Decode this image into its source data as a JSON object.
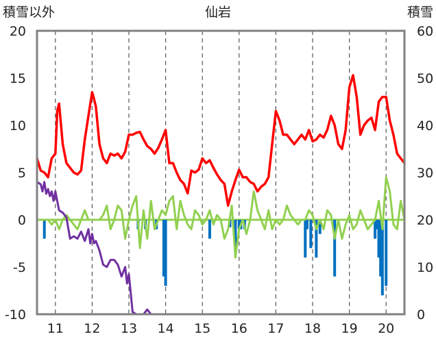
{
  "chart_data": {
    "type": "line",
    "title": "仙岩",
    "ylabel_left": "積雪以外",
    "ylabel_right": "積雪",
    "ylim_left": [
      -10,
      20
    ],
    "ylim_right": [
      0,
      60
    ],
    "yticks_left": [
      "20",
      "15",
      "10",
      "5",
      "0",
      "-5",
      "-10"
    ],
    "yticks_right": [
      "60",
      "50",
      "40",
      "30",
      "20",
      "10",
      "0"
    ],
    "xlim": [
      10.5,
      20.5
    ],
    "xticks": [
      "11",
      "12",
      "13",
      "14",
      "15",
      "16",
      "17",
      "18",
      "19",
      "20"
    ],
    "grid": "dashed vertical",
    "colors": {
      "red_series": "#ff0000",
      "light_green_series": "#92d050",
      "blue_bars": "#0070c0",
      "purple_series": "#7030a0",
      "zero_line": "#92d050",
      "frame": "#808080",
      "grid": "#555555"
    },
    "series": [
      {
        "axis": "left",
        "color": "#ff0000",
        "style": "line",
        "x": [
          10.5,
          10.6,
          10.7,
          10.8,
          10.9,
          11.0,
          11.05,
          11.1,
          11.2,
          11.3,
          11.4,
          11.5,
          11.6,
          11.7,
          11.8,
          11.9,
          12.0,
          12.05,
          12.1,
          12.2,
          12.3,
          12.4,
          12.5,
          12.6,
          12.7,
          12.8,
          12.9,
          13.0,
          13.1,
          13.2,
          13.3,
          13.4,
          13.5,
          13.6,
          13.7,
          13.8,
          13.9,
          14.0,
          14.1,
          14.2,
          14.3,
          14.4,
          14.5,
          14.6,
          14.7,
          14.8,
          14.9,
          15.0,
          15.1,
          15.2,
          15.3,
          15.4,
          15.5,
          15.6,
          15.7,
          15.8,
          15.9,
          16.0,
          16.1,
          16.2,
          16.3,
          16.4,
          16.5,
          16.6,
          16.7,
          16.8,
          16.9,
          17.0,
          17.1,
          17.2,
          17.3,
          17.4,
          17.5,
          17.6,
          17.7,
          17.8,
          17.9,
          18.0,
          18.1,
          18.2,
          18.3,
          18.4,
          18.5,
          18.6,
          18.7,
          18.8,
          18.9,
          19.0,
          19.1,
          19.2,
          19.3,
          19.4,
          19.5,
          19.6,
          19.7,
          19.8,
          19.9,
          20.0,
          20.1,
          20.2,
          20.3,
          20.4,
          20.5
        ],
        "y": [
          6.5,
          5.2,
          5.0,
          4.5,
          6.5,
          7.0,
          11.5,
          12.3,
          8.0,
          6.0,
          5.5,
          5.0,
          4.8,
          5.2,
          8.5,
          11.0,
          13.5,
          12.8,
          12.0,
          8.0,
          6.5,
          6.0,
          7.0,
          6.8,
          7.0,
          6.5,
          7.2,
          9.0,
          9.0,
          9.2,
          9.3,
          8.5,
          7.8,
          7.5,
          7.0,
          7.6,
          8.5,
          9.5,
          6.0,
          6.0,
          5.0,
          4.2,
          3.8,
          2.8,
          5.2,
          5.0,
          5.3,
          6.5,
          6.0,
          6.3,
          5.5,
          4.8,
          4.2,
          3.8,
          1.5,
          3.0,
          4.2,
          5.3,
          4.5,
          4.5,
          4.0,
          3.8,
          3.0,
          3.5,
          3.8,
          4.5,
          8.0,
          11.5,
          10.5,
          9.0,
          9.0,
          8.5,
          8.0,
          8.5,
          9.0,
          8.5,
          9.5,
          8.3,
          8.5,
          9.0,
          8.7,
          9.5,
          11.0,
          10.0,
          8.0,
          7.5,
          9.5,
          14.0,
          15.3,
          13.0,
          9.0,
          10.0,
          10.5,
          10.8,
          9.5,
          12.5,
          13.0,
          13.0,
          10.5,
          9.0,
          7.0,
          6.5,
          6.0
        ]
      },
      {
        "axis": "left",
        "color": "#92d050",
        "style": "line",
        "x": [
          10.5,
          10.6,
          10.7,
          10.8,
          10.9,
          11.0,
          11.1,
          11.2,
          11.3,
          11.4,
          11.5,
          11.6,
          11.7,
          11.8,
          11.9,
          12.0,
          12.1,
          12.2,
          12.3,
          12.4,
          12.5,
          12.6,
          12.7,
          12.8,
          12.9,
          13.0,
          13.1,
          13.2,
          13.3,
          13.4,
          13.5,
          13.6,
          13.7,
          13.8,
          13.9,
          14.0,
          14.1,
          14.2,
          14.3,
          14.4,
          14.5,
          14.6,
          14.7,
          14.8,
          14.9,
          15.0,
          15.1,
          15.2,
          15.3,
          15.4,
          15.5,
          15.6,
          15.7,
          15.8,
          15.9,
          16.0,
          16.1,
          16.2,
          16.3,
          16.4,
          16.5,
          16.6,
          16.7,
          16.8,
          16.9,
          17.0,
          17.1,
          17.2,
          17.3,
          17.4,
          17.5,
          17.6,
          17.7,
          17.8,
          17.9,
          18.0,
          18.1,
          18.2,
          18.3,
          18.4,
          18.5,
          18.6,
          18.7,
          18.8,
          18.9,
          19.0,
          19.1,
          19.2,
          19.3,
          19.4,
          19.5,
          19.6,
          19.7,
          19.8,
          19.9,
          20.0,
          20.1,
          20.2,
          20.3,
          20.4,
          20.5
        ],
        "y": [
          0,
          0,
          0,
          0,
          -0.5,
          0,
          -1.0,
          0,
          0.5,
          0,
          -0.5,
          -1.0,
          0,
          1.0,
          0,
          0,
          0,
          0,
          0.5,
          1.5,
          -1.0,
          0,
          1.5,
          1.0,
          -2.0,
          0,
          1.5,
          2.5,
          -3.0,
          1.0,
          -2.0,
          2.0,
          -1.0,
          0,
          1.0,
          0.5,
          2.0,
          2.5,
          -1.0,
          2.0,
          0.5,
          -0.5,
          -1.0,
          1.0,
          0.5,
          -0.5,
          0,
          1.0,
          -0.5,
          0.5,
          0,
          -2.0,
          -1.0,
          1.5,
          -4.0,
          -1.0,
          0,
          -1.5,
          0,
          3.0,
          1.0,
          0,
          -1.0,
          1.0,
          -1.0,
          0,
          -0.5,
          0,
          1.5,
          0.5,
          0,
          -0.5,
          0,
          0,
          1.0,
          0.5,
          -1.0,
          0,
          -1.0,
          1.0,
          0.5,
          -2.0,
          0,
          -2.0,
          -0.5,
          0.5,
          -1.0,
          -0.5,
          1.0,
          0,
          -1.0,
          -0.5,
          0,
          2.0,
          -1.0,
          4.5,
          3.0,
          -0.5,
          -1.0,
          2.0,
          0
        ]
      },
      {
        "axis": "left",
        "color": "#0070c0",
        "style": "bar",
        "x": [
          10.7,
          13.25,
          13.45,
          13.75,
          13.95,
          14.0,
          15.2,
          15.75,
          15.9,
          16.0,
          16.05,
          16.15,
          17.8,
          17.85,
          17.95,
          18.1,
          18.2,
          18.6,
          19.7,
          19.75,
          19.8,
          19.85,
          19.9,
          20.0
        ],
        "y": [
          -2.0,
          -1.0,
          -1.0,
          -1.0,
          -6.0,
          -7.0,
          -2.0,
          -0.8,
          -3.0,
          -1.0,
          -1.0,
          -1.0,
          -4.0,
          -1.0,
          -3.0,
          -4.0,
          -1.5,
          -6.0,
          -2.0,
          -1.0,
          -4.0,
          -6.0,
          -8.0,
          -7.0
        ]
      },
      {
        "axis": "right",
        "color": "#7030a0",
        "style": "line",
        "x": [
          10.5,
          10.6,
          10.65,
          10.7,
          10.75,
          10.8,
          10.85,
          10.9,
          10.95,
          11.0,
          11.1,
          11.2,
          11.3,
          11.4,
          11.5,
          11.6,
          11.7,
          11.8,
          11.9,
          11.95,
          12.0,
          12.05,
          12.1,
          12.2,
          12.3,
          12.4,
          12.5,
          12.6,
          12.7,
          12.8,
          12.9,
          12.95,
          13.0,
          13.1,
          13.2,
          13.3,
          13.4,
          13.5,
          13.6,
          14.0,
          15.0,
          16.0,
          17.0,
          18.0,
          19.0,
          20.0,
          20.5
        ],
        "y": [
          28.0,
          27.5,
          26.0,
          28.0,
          25.5,
          26.5,
          25.0,
          26.0,
          24.0,
          26.0,
          22.0,
          21.5,
          20.5,
          16.0,
          16.5,
          16.0,
          17.5,
          15.5,
          18.0,
          15.0,
          17.0,
          15.0,
          15.5,
          13.5,
          10.5,
          10.0,
          11.5,
          11.5,
          10.5,
          8.0,
          10.0,
          6.5,
          8.5,
          0.5,
          0,
          0,
          0,
          1.0,
          0,
          0,
          0,
          0,
          0,
          0,
          0,
          0,
          0
        ]
      }
    ]
  }
}
